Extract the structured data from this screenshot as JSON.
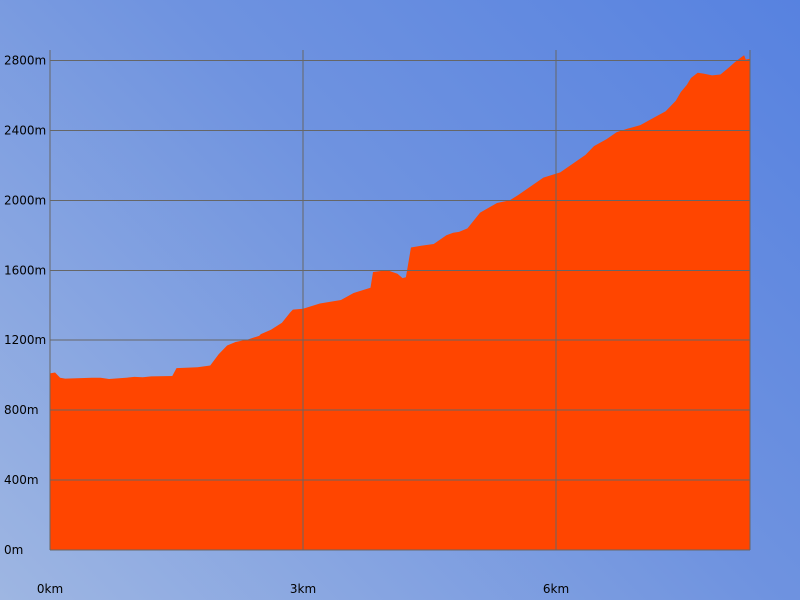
{
  "colors": {
    "area_fill": "#ff4500",
    "grid": "#666666",
    "text": "#000000",
    "background_start": "#9eb6e2",
    "background_end": "#5782e0"
  },
  "chart_data": {
    "type": "area",
    "title": "",
    "xlabel": "",
    "ylabel": "",
    "x_unit": "km",
    "y_unit": "m",
    "xlim": [
      0,
      8.3
    ],
    "ylim": [
      0,
      2860
    ],
    "grid": true,
    "x_ticks": [
      {
        "value": 0,
        "label": "0km"
      },
      {
        "value": 3,
        "label": "3km"
      },
      {
        "value": 6,
        "label": "6km"
      }
    ],
    "y_ticks": [
      {
        "value": 0,
        "label": "0m"
      },
      {
        "value": 400,
        "label": "400m"
      },
      {
        "value": 800,
        "label": "800m"
      },
      {
        "value": 1200,
        "label": "1200m"
      },
      {
        "value": 1600,
        "label": "1600m"
      },
      {
        "value": 2000,
        "label": "2000m"
      },
      {
        "value": 2400,
        "label": "2400m"
      },
      {
        "value": 2800,
        "label": "2800m"
      }
    ],
    "series": [
      {
        "x": [
          0,
          0.06,
          0.12,
          0.18,
          0.5,
          0.6,
          0.7,
          0.9,
          1.0,
          1.1,
          1.2,
          1.45,
          1.5,
          1.75,
          1.9,
          2.0,
          2.1,
          2.2,
          2.35,
          2.48,
          2.5,
          2.62,
          2.75,
          2.85,
          2.88,
          3.0,
          3.1,
          3.2,
          3.45,
          3.6,
          3.8,
          3.83,
          4.0,
          4.12,
          4.18,
          4.22,
          4.28,
          4.4,
          4.55,
          4.7,
          4.78,
          4.85,
          4.95,
          5.1,
          5.3,
          5.45,
          5.55,
          5.7,
          5.85,
          6.05,
          6.2,
          6.35,
          6.45,
          6.6,
          6.72,
          6.85,
          7.0,
          7.15,
          7.3,
          7.42,
          7.48,
          7.55,
          7.6,
          7.68,
          7.75,
          7.85,
          7.95,
          8.05,
          8.12,
          8.2,
          8.23,
          8.25,
          8.3
        ],
        "y": [
          1010,
          1015,
          985,
          980,
          985,
          985,
          978,
          985,
          990,
          988,
          993,
          995,
          1040,
          1045,
          1055,
          1120,
          1170,
          1190,
          1205,
          1225,
          1235,
          1260,
          1300,
          1360,
          1375,
          1380,
          1395,
          1410,
          1430,
          1470,
          1500,
          1590,
          1600,
          1580,
          1555,
          1560,
          1730,
          1740,
          1750,
          1800,
          1815,
          1820,
          1840,
          1930,
          1985,
          2000,
          2030,
          2080,
          2130,
          2160,
          2210,
          2260,
          2310,
          2350,
          2390,
          2410,
          2430,
          2470,
          2510,
          2570,
          2620,
          2660,
          2700,
          2730,
          2725,
          2715,
          2720,
          2760,
          2790,
          2820,
          2830,
          2805,
          2810
        ]
      }
    ]
  }
}
